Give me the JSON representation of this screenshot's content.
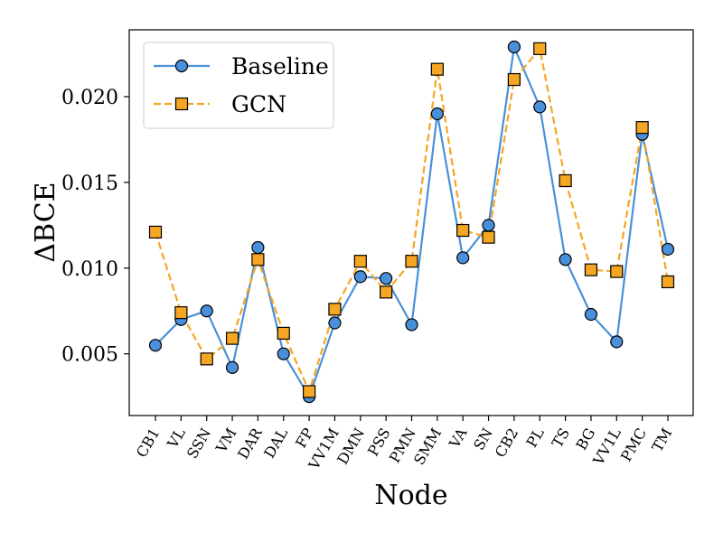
{
  "chart_data": {
    "type": "line",
    "xlabel": "Node",
    "ylabel": "ΔBCE",
    "categories": [
      "CB1",
      "VL",
      "SSN",
      "VM",
      "DAR",
      "DAL",
      "FP",
      "VV1M",
      "DMN",
      "PSS",
      "PMN",
      "SMM",
      "VA",
      "SN",
      "CB2",
      "PL",
      "TS",
      "BG",
      "VV1L",
      "PMC",
      "TM"
    ],
    "ylim": [
      0.0014,
      0.0239
    ],
    "yticks": [
      "0.005",
      "0.010",
      "0.015",
      "0.020"
    ],
    "ytick_values": [
      0.005,
      0.01,
      0.015,
      0.02
    ],
    "grid": false,
    "legend": "top-left",
    "series": [
      {
        "name": "Baseline",
        "color": "#4a90d9",
        "line_style": "solid",
        "marker": "circle",
        "values": [
          0.0055,
          0.007,
          0.0075,
          0.0042,
          0.0112,
          0.005,
          0.0025,
          0.0068,
          0.0095,
          0.0094,
          0.0067,
          0.019,
          0.0106,
          0.0125,
          0.0229,
          0.0194,
          0.0105,
          0.0073,
          0.0057,
          0.0178,
          0.0111
        ]
      },
      {
        "name": "GCN",
        "color": "#f5a623",
        "line_style": "dashed",
        "marker": "square",
        "values": [
          0.0121,
          0.0074,
          0.0047,
          0.0059,
          0.0105,
          0.0062,
          0.0028,
          0.0076,
          0.0104,
          0.0086,
          0.0104,
          0.0216,
          0.0122,
          0.0118,
          0.021,
          0.0228,
          0.0151,
          0.0099,
          0.0098,
          0.0182,
          0.0092
        ]
      }
    ]
  }
}
